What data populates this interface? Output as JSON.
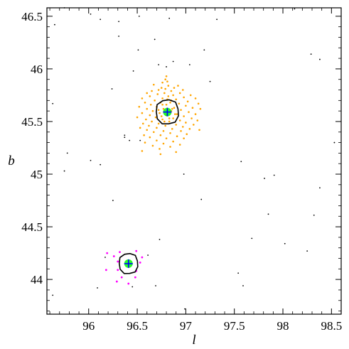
{
  "chart_data": {
    "type": "scatter",
    "xlabel": "l",
    "ylabel": "b",
    "xlim": [
      95.57,
      98.6
    ],
    "ylim": [
      43.67,
      46.58
    ],
    "xticks": [
      96,
      96.5,
      97,
      97.5,
      98,
      98.5
    ],
    "xtick_labels": [
      "96",
      "96.5",
      "97",
      "97.5",
      "98",
      "98.5"
    ],
    "yticks": [
      44,
      44.5,
      45,
      45.5,
      46,
      46.5
    ],
    "ytick_labels": [
      "44",
      "44.5",
      "45",
      "45.5",
      "46",
      "46.5"
    ],
    "grid": false,
    "colors": {
      "background": "#000000",
      "cluster_a": "#ffa500",
      "cluster_b": "#ff00ff",
      "center_fill": "#00ff00",
      "center_cross": "#0000ff",
      "contour": "#000000"
    },
    "background_points": [
      [
        95.65,
        46.42
      ],
      [
        95.75,
        46.58
      ],
      [
        96.02,
        46.52
      ],
      [
        96.12,
        46.47
      ],
      [
        96.31,
        46.45
      ],
      [
        96.52,
        46.5
      ],
      [
        96.83,
        46.48
      ],
      [
        97.32,
        46.47
      ],
      [
        98.12,
        46.57
      ],
      [
        96.31,
        46.31
      ],
      [
        96.68,
        46.28
      ],
      [
        96.51,
        46.18
      ],
      [
        97.19,
        46.18
      ],
      [
        96.87,
        46.07
      ],
      [
        98.29,
        46.14
      ],
      [
        98.38,
        46.09
      ],
      [
        96.72,
        46.04
      ],
      [
        96.8,
        46.02
      ],
      [
        97.04,
        46.04
      ],
      [
        96.46,
        45.98
      ],
      [
        95.63,
        45.67
      ],
      [
        97.25,
        45.88
      ],
      [
        96.24,
        45.81
      ],
      [
        96.37,
        45.37
      ],
      [
        96.42,
        45.32
      ],
      [
        98.53,
        45.3
      ],
      [
        96.53,
        45.32
      ],
      [
        96.37,
        45.35
      ],
      [
        95.78,
        45.2
      ],
      [
        96.02,
        45.13
      ],
      [
        96.12,
        45.09
      ],
      [
        95.75,
        45.03
      ],
      [
        96.25,
        44.75
      ],
      [
        97.57,
        45.12
      ],
      [
        96.98,
        45.0
      ],
      [
        97.81,
        44.96
      ],
      [
        97.91,
        44.99
      ],
      [
        98.38,
        44.87
      ],
      [
        97.16,
        44.76
      ],
      [
        97.85,
        44.62
      ],
      [
        98.32,
        44.61
      ],
      [
        96.73,
        44.38
      ],
      [
        97.68,
        44.39
      ],
      [
        98.02,
        44.34
      ],
      [
        96.17,
        44.21
      ],
      [
        96.61,
        44.23
      ],
      [
        98.25,
        44.27
      ],
      [
        97.54,
        44.06
      ],
      [
        96.09,
        43.92
      ],
      [
        96.45,
        43.93
      ],
      [
        96.69,
        43.94
      ],
      [
        97.59,
        43.94
      ],
      [
        95.63,
        43.85
      ],
      [
        96.99,
        43.72
      ]
    ],
    "cluster_a": {
      "center": [
        96.81,
        45.59
      ],
      "radius": 0.12,
      "points": [
        [
          96.8,
          45.93
        ],
        [
          96.79,
          45.9
        ],
        [
          96.81,
          45.88
        ],
        [
          96.76,
          45.87
        ],
        [
          96.67,
          45.85
        ],
        [
          96.92,
          45.84
        ],
        [
          96.82,
          45.84
        ],
        [
          96.75,
          45.82
        ],
        [
          96.88,
          45.82
        ],
        [
          96.79,
          45.81
        ],
        [
          96.72,
          45.8
        ],
        [
          96.97,
          45.8
        ],
        [
          96.65,
          45.79
        ],
        [
          96.85,
          45.79
        ],
        [
          96.6,
          45.77
        ],
        [
          96.78,
          45.77
        ],
        [
          96.94,
          45.77
        ],
        [
          96.71,
          45.76
        ],
        [
          96.87,
          45.75
        ],
        [
          97.05,
          45.75
        ],
        [
          96.63,
          45.74
        ],
        [
          96.82,
          45.74
        ],
        [
          96.98,
          45.73
        ],
        [
          96.55,
          45.72
        ],
        [
          96.76,
          45.72
        ],
        [
          96.9,
          45.71
        ],
        [
          97.1,
          45.72
        ],
        [
          96.68,
          45.7
        ],
        [
          96.85,
          45.7
        ],
        [
          97.02,
          45.69
        ],
        [
          96.58,
          45.68
        ],
        [
          96.74,
          45.68
        ],
        [
          96.93,
          45.67
        ],
        [
          97.13,
          45.67
        ],
        [
          96.64,
          45.66
        ],
        [
          96.8,
          45.66
        ],
        [
          97.0,
          45.65
        ],
        [
          96.52,
          45.64
        ],
        [
          96.7,
          45.64
        ],
        [
          96.88,
          45.63
        ],
        [
          97.07,
          45.63
        ],
        [
          96.6,
          45.62
        ],
        [
          96.77,
          45.62
        ],
        [
          96.95,
          45.61
        ],
        [
          97.15,
          45.62
        ],
        [
          96.66,
          45.6
        ],
        [
          96.85,
          45.6
        ],
        [
          97.03,
          45.59
        ],
        [
          96.55,
          45.58
        ],
        [
          96.73,
          45.58
        ],
        [
          96.91,
          45.57
        ],
        [
          97.1,
          45.57
        ],
        [
          96.63,
          45.56
        ],
        [
          96.8,
          45.56
        ],
        [
          96.98,
          45.55
        ],
        [
          96.5,
          45.54
        ],
        [
          96.69,
          45.54
        ],
        [
          96.87,
          45.53
        ],
        [
          97.06,
          45.53
        ],
        [
          96.59,
          45.52
        ],
        [
          96.76,
          45.52
        ],
        [
          96.94,
          45.51
        ],
        [
          97.12,
          45.51
        ],
        [
          96.65,
          45.5
        ],
        [
          96.83,
          45.5
        ],
        [
          97.0,
          45.49
        ],
        [
          96.56,
          45.48
        ],
        [
          96.72,
          45.48
        ],
        [
          96.9,
          45.47
        ],
        [
          97.08,
          45.47
        ],
        [
          96.62,
          45.46
        ],
        [
          96.79,
          45.46
        ],
        [
          96.97,
          45.45
        ],
        [
          96.53,
          45.44
        ],
        [
          96.7,
          45.44
        ],
        [
          96.86,
          45.43
        ],
        [
          97.04,
          45.43
        ],
        [
          96.6,
          45.42
        ],
        [
          96.77,
          45.41
        ],
        [
          96.95,
          45.41
        ],
        [
          97.14,
          45.42
        ],
        [
          96.67,
          45.4
        ],
        [
          96.84,
          45.39
        ],
        [
          97.01,
          45.38
        ],
        [
          96.57,
          45.37
        ],
        [
          96.74,
          45.37
        ],
        [
          96.91,
          45.36
        ],
        [
          96.63,
          45.35
        ],
        [
          96.8,
          45.34
        ],
        [
          96.98,
          45.34
        ],
        [
          96.7,
          45.32
        ],
        [
          96.87,
          45.31
        ],
        [
          96.58,
          45.3
        ],
        [
          96.77,
          45.29
        ],
        [
          96.94,
          45.28
        ],
        [
          96.66,
          45.27
        ],
        [
          96.84,
          45.26
        ],
        [
          96.73,
          45.24
        ],
        [
          96.55,
          45.22
        ],
        [
          96.9,
          45.21
        ],
        [
          96.74,
          45.19
        ],
        [
          96.81,
          45.71
        ],
        [
          96.84,
          45.68
        ],
        [
          96.76,
          45.66
        ],
        [
          96.86,
          45.62
        ],
        [
          96.75,
          45.55
        ],
        [
          96.83,
          45.53
        ],
        [
          96.78,
          45.5
        ],
        [
          96.89,
          45.57
        ],
        [
          96.72,
          45.61
        ]
      ]
    },
    "cluster_b": {
      "center": [
        96.41,
        44.15
      ],
      "radius": 0.1,
      "points": [
        [
          96.19,
          44.25
        ],
        [
          96.32,
          44.26
        ],
        [
          96.49,
          44.27
        ],
        [
          96.26,
          44.22
        ],
        [
          96.55,
          44.21
        ],
        [
          96.3,
          44.17
        ],
        [
          96.53,
          44.16
        ],
        [
          96.18,
          44.09
        ],
        [
          96.3,
          44.09
        ],
        [
          96.49,
          44.08
        ],
        [
          96.34,
          44.02
        ],
        [
          96.48,
          44.02
        ],
        [
          96.41,
          43.96
        ],
        [
          96.29,
          43.98
        ]
      ]
    }
  }
}
